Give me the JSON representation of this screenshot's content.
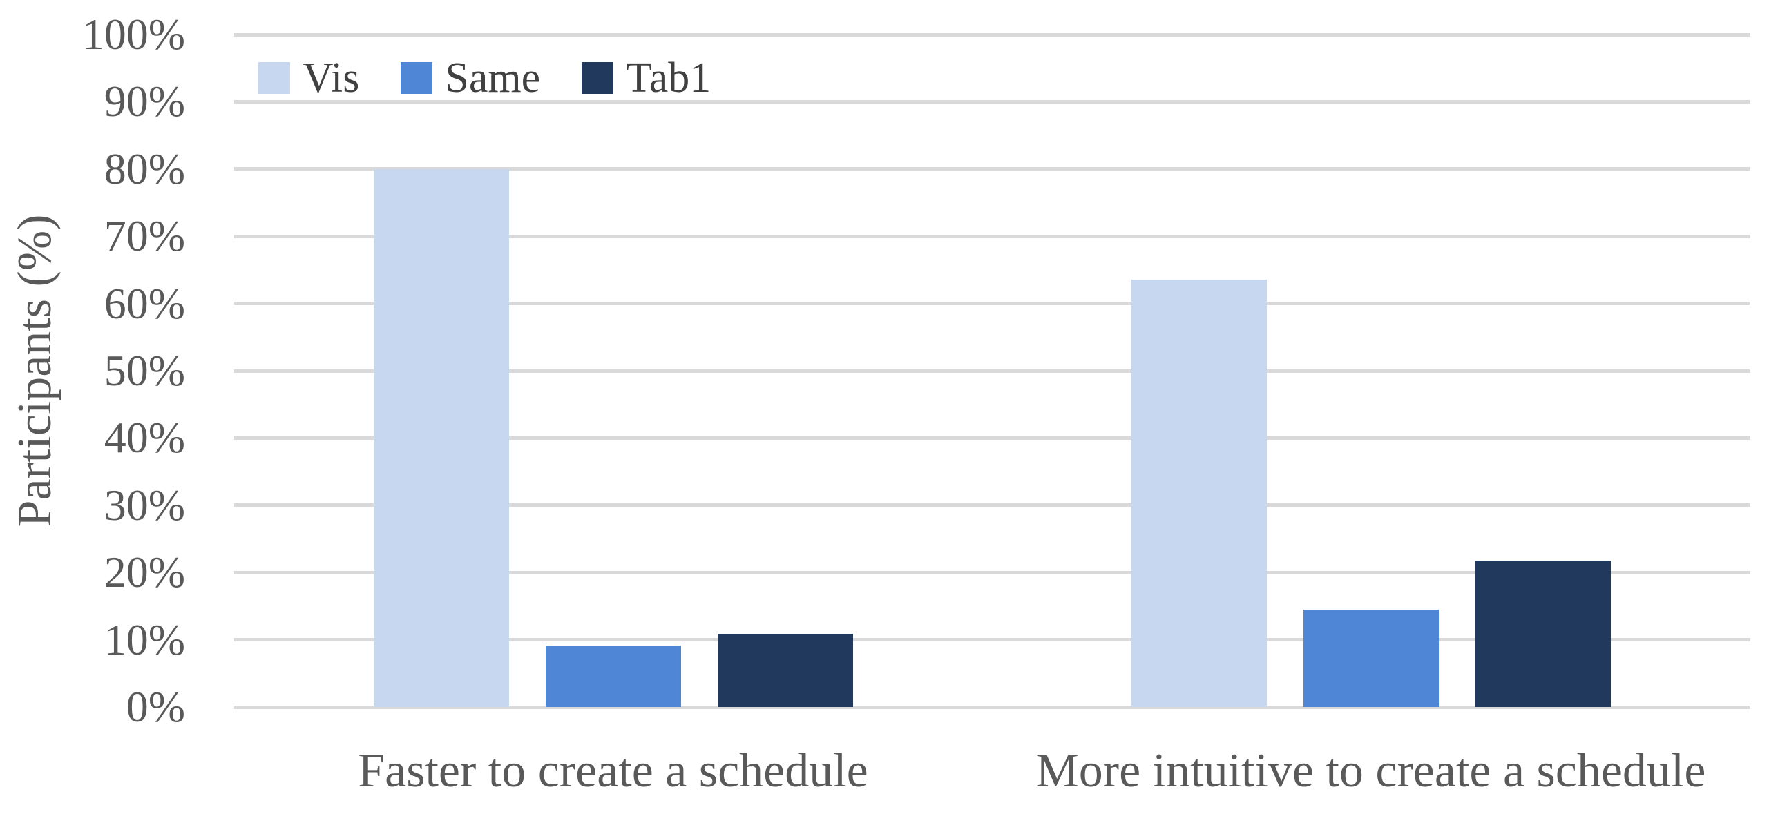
{
  "chart_data": {
    "type": "bar",
    "title": "",
    "ylabel": "Participants (%)",
    "xlabel": "",
    "ylim": [
      0,
      100
    ],
    "ytick_step": 10,
    "yticks": [
      "0%",
      "10%",
      "20%",
      "30%",
      "40%",
      "50%",
      "60%",
      "70%",
      "80%",
      "90%",
      "100%"
    ],
    "grid": "horizontal",
    "legend_position": "top-left-inside",
    "categories": [
      "Faster to create a schedule",
      "More intuitive to create a schedule"
    ],
    "series": [
      {
        "name": "Vis",
        "color": "#C7D7EF",
        "values": [
          80.0,
          63.6
        ]
      },
      {
        "name": "Same",
        "color": "#4F87D6",
        "values": [
          9.1,
          14.5
        ]
      },
      {
        "name": "Tab1",
        "color": "#22395E",
        "values": [
          10.9,
          21.8
        ]
      }
    ]
  },
  "colors": {
    "gridline": "#D9D9D9",
    "axis_text": "#595959",
    "legend_text": "#404040",
    "background": "#FFFFFF"
  }
}
